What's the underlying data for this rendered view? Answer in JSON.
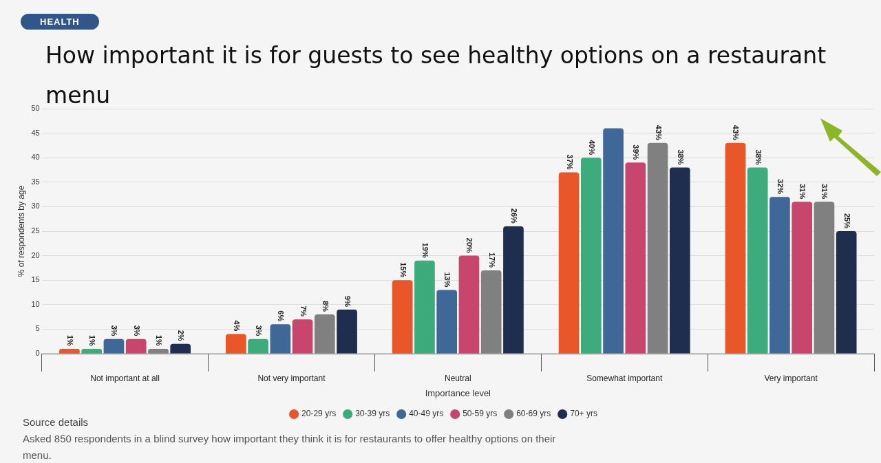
{
  "chart_data": {
    "type": "bar",
    "title": "How important it is for guests to see healthy options on a restaurant menu",
    "xlabel": "Importance level",
    "ylabel": "% of respondents by age",
    "categories": [
      "Not important at all",
      "Not very important",
      "Neutral",
      "Somewhat important",
      "Very important"
    ],
    "series": [
      {
        "name": "20-29 yrs",
        "color": "#e8562a",
        "values": [
          1,
          4,
          15,
          37,
          43
        ],
        "value_labels": [
          "1%",
          "4%",
          "15%",
          "37%",
          "43%"
        ]
      },
      {
        "name": "30-39 yrs",
        "color": "#3dab7c",
        "values": [
          1,
          3,
          19,
          40,
          38
        ],
        "value_labels": [
          "1%",
          "3%",
          "19%",
          "40%",
          "38%"
        ]
      },
      {
        "name": "40-49 yrs",
        "color": "#3f6797",
        "values": [
          3,
          6,
          13,
          46,
          32
        ],
        "value_labels": [
          "3%",
          "6%",
          "13%",
          null,
          "32%"
        ]
      },
      {
        "name": "50-59 yrs",
        "color": "#c8456e",
        "values": [
          3,
          7,
          20,
          39,
          31
        ],
        "value_labels": [
          "3%",
          "7%",
          "20%",
          "39%",
          "31%"
        ]
      },
      {
        "name": "60-69 yrs",
        "color": "#808080",
        "values": [
          1,
          8,
          17,
          43,
          31
        ],
        "value_labels": [
          "1%",
          "8%",
          "17%",
          "43%",
          "31%"
        ]
      },
      {
        "name": "70+ yrs",
        "color": "#1f2d4f",
        "values": [
          2,
          9,
          26,
          38,
          25
        ],
        "value_labels": [
          "2%",
          "9%",
          "26%",
          "38%",
          "25%"
        ]
      }
    ],
    "ylim": [
      0,
      50
    ],
    "yticks": [
      0,
      5,
      10,
      15,
      20,
      25,
      30,
      35,
      40,
      45,
      50
    ],
    "grid": "y",
    "legend": "bottom",
    "annotations": [
      "HEALTH",
      "Source details",
      "Asked 850 respondents in a blind survey how important they think it is for restaurants to offer healthy options on their menu."
    ]
  }
}
